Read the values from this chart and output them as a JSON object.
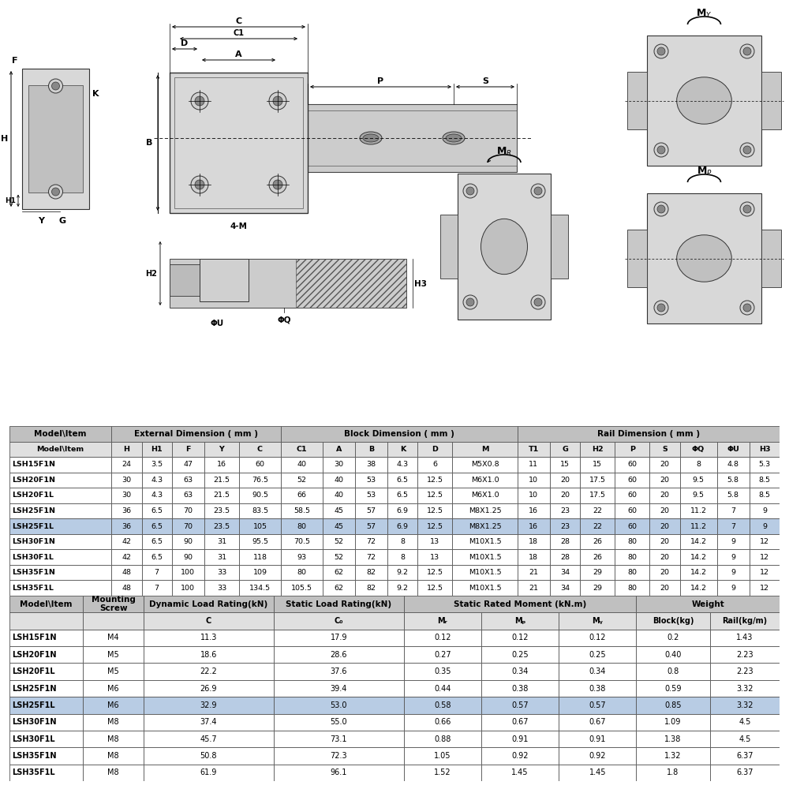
{
  "bg_color": "#ffffff",
  "table1_header_bg": "#c0c0c0",
  "table1_highlight_bg": "#b8cce4",
  "table1_normal_bg": "#ffffff",
  "table1_subheader_bg": "#e0e0e0",
  "table_border_color": "#555555",
  "table1_col_headers": [
    "Model\\Item",
    "H",
    "H1",
    "F",
    "Y",
    "C",
    "C1",
    "A",
    "B",
    "K",
    "D",
    "M",
    "T1",
    "G",
    "H2",
    "P",
    "S",
    "ΦQ",
    "ΦU",
    "H3"
  ],
  "table1_rows": [
    [
      "LSH15F1N",
      "24",
      "3.5",
      "47",
      "16",
      "60",
      "40",
      "30",
      "38",
      "4.3",
      "6",
      "M5X0.8",
      "11",
      "15",
      "15",
      "60",
      "20",
      "8",
      "4.8",
      "5.3"
    ],
    [
      "LSH20F1N",
      "30",
      "4.3",
      "63",
      "21.5",
      "76.5",
      "52",
      "40",
      "53",
      "6.5",
      "12.5",
      "M6X1.0",
      "10",
      "20",
      "17.5",
      "60",
      "20",
      "9.5",
      "5.8",
      "8.5"
    ],
    [
      "LSH20F1L",
      "30",
      "4.3",
      "63",
      "21.5",
      "90.5",
      "66",
      "40",
      "53",
      "6.5",
      "12.5",
      "M6X1.0",
      "10",
      "20",
      "17.5",
      "60",
      "20",
      "9.5",
      "5.8",
      "8.5"
    ],
    [
      "LSH25F1N",
      "36",
      "6.5",
      "70",
      "23.5",
      "83.5",
      "58.5",
      "45",
      "57",
      "6.9",
      "12.5",
      "M8X1.25",
      "16",
      "23",
      "22",
      "60",
      "20",
      "11.2",
      "7",
      "9"
    ],
    [
      "LSH25F1L",
      "36",
      "6.5",
      "70",
      "23.5",
      "105",
      "80",
      "45",
      "57",
      "6.9",
      "12.5",
      "M8X1.25",
      "16",
      "23",
      "22",
      "60",
      "20",
      "11.2",
      "7",
      "9"
    ],
    [
      "LSH30F1N",
      "42",
      "6.5",
      "90",
      "31",
      "95.5",
      "70.5",
      "52",
      "72",
      "8",
      "13",
      "M10X1.5",
      "18",
      "28",
      "26",
      "80",
      "20",
      "14.2",
      "9",
      "12"
    ],
    [
      "LSH30F1L",
      "42",
      "6.5",
      "90",
      "31",
      "118",
      "93",
      "52",
      "72",
      "8",
      "13",
      "M10X1.5",
      "18",
      "28",
      "26",
      "80",
      "20",
      "14.2",
      "9",
      "12"
    ],
    [
      "LSH35F1N",
      "48",
      "7",
      "100",
      "33",
      "109",
      "80",
      "62",
      "82",
      "9.2",
      "12.5",
      "M10X1.5",
      "21",
      "34",
      "29",
      "80",
      "20",
      "14.2",
      "9",
      "12"
    ],
    [
      "LSH35F1L",
      "48",
      "7",
      "100",
      "33",
      "134.5",
      "105.5",
      "62",
      "82",
      "9.2",
      "12.5",
      "M10X1.5",
      "21",
      "34",
      "29",
      "80",
      "20",
      "14.2",
      "9",
      "12"
    ]
  ],
  "table1_highlight_row": 4,
  "table2_rows": [
    [
      "LSH15F1N",
      "M4",
      "11.3",
      "17.9",
      "0.12",
      "0.12",
      "0.12",
      "0.2",
      "1.43"
    ],
    [
      "LSH20F1N",
      "M5",
      "18.6",
      "28.6",
      "0.27",
      "0.25",
      "0.25",
      "0.40",
      "2.23"
    ],
    [
      "LSH20F1L",
      "M5",
      "22.2",
      "37.6",
      "0.35",
      "0.34",
      "0.34",
      "0.8",
      "2.23"
    ],
    [
      "LSH25F1N",
      "M6",
      "26.9",
      "39.4",
      "0.44",
      "0.38",
      "0.38",
      "0.59",
      "3.32"
    ],
    [
      "LSH25F1L",
      "M6",
      "32.9",
      "53.0",
      "0.58",
      "0.57",
      "0.57",
      "0.85",
      "3.32"
    ],
    [
      "LSH30F1N",
      "M8",
      "37.4",
      "55.0",
      "0.66",
      "0.67",
      "0.67",
      "1.09",
      "4.5"
    ],
    [
      "LSH30F1L",
      "M8",
      "45.7",
      "73.1",
      "0.88",
      "0.91",
      "0.91",
      "1.38",
      "4.5"
    ],
    [
      "LSH35F1N",
      "M8",
      "50.8",
      "72.3",
      "1.05",
      "0.92",
      "0.92",
      "1.32",
      "6.37"
    ],
    [
      "LSH35F1L",
      "M8",
      "61.9",
      "96.1",
      "1.52",
      "1.45",
      "1.45",
      "1.8",
      "6.37"
    ]
  ],
  "table2_highlight_row": 4
}
